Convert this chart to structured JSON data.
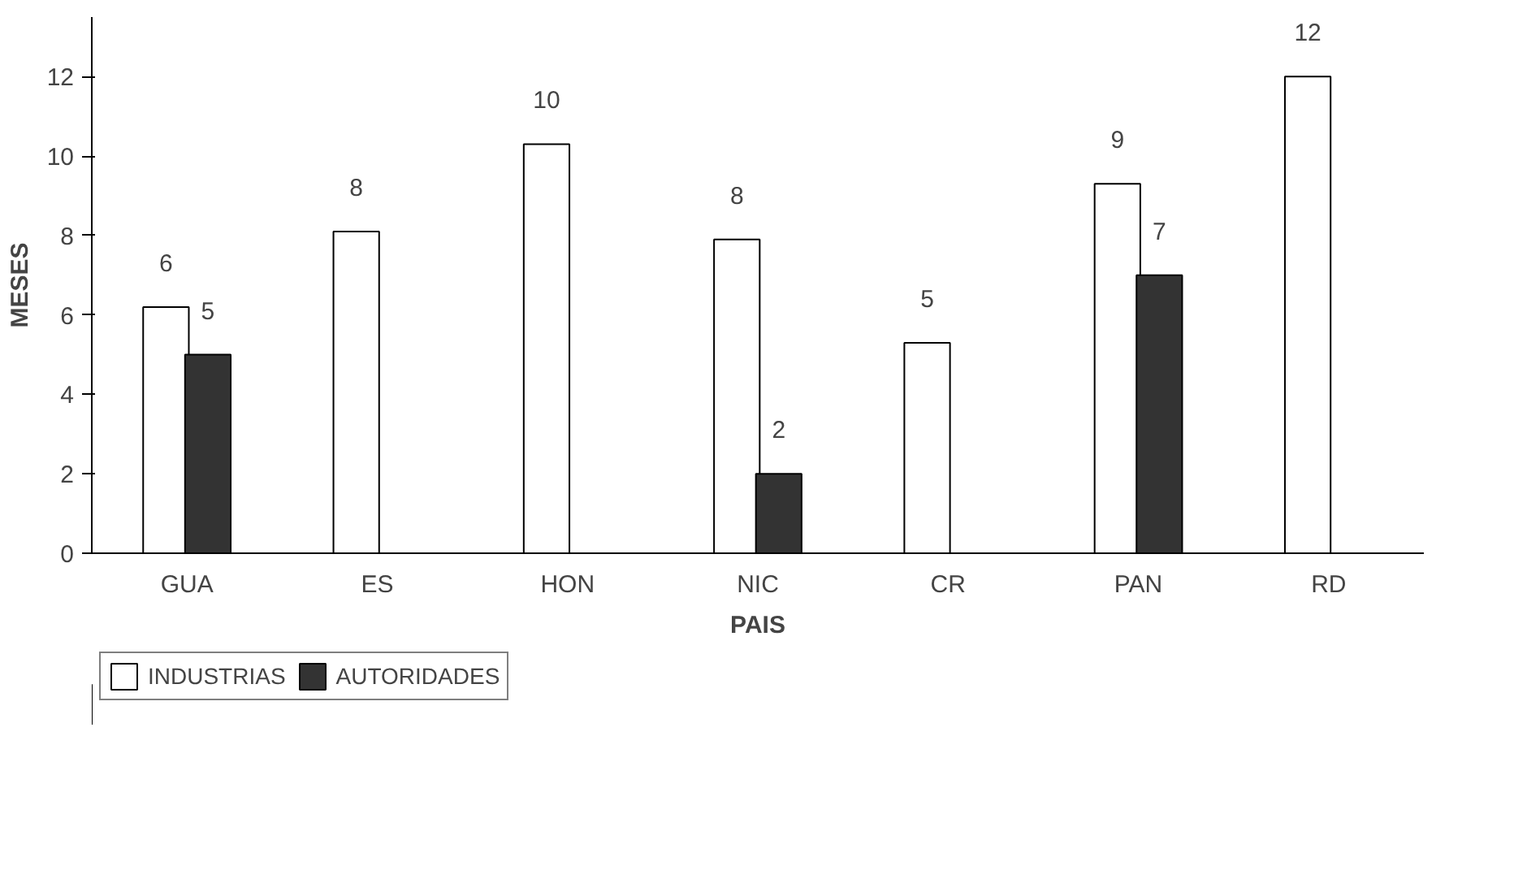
{
  "chart_data": {
    "type": "bar",
    "xlabel": "PAIS",
    "ylabel": "MESES",
    "categories": [
      "GUA",
      "ES",
      "HON",
      "NIC",
      "CR",
      "PAN",
      "RD"
    ],
    "series": [
      {
        "name": "INDUSTRIAS",
        "color": "#ffffff",
        "values": [
          6.2,
          8.1,
          10.3,
          7.9,
          5.3,
          9.3,
          12.0
        ],
        "value_labels": [
          "6",
          "8",
          "10",
          "8",
          "5",
          "9",
          "12"
        ]
      },
      {
        "name": "AUTORIDADES",
        "color": "#333333",
        "values": [
          5.0,
          null,
          null,
          2.0,
          null,
          7.0,
          null
        ],
        "value_labels": [
          "5",
          null,
          null,
          "2",
          null,
          "7",
          null
        ]
      }
    ],
    "ylim": [
      0,
      13.5
    ],
    "yticks": [
      0,
      2,
      4,
      6,
      8,
      10,
      12
    ],
    "grid": false,
    "legend": "bottom left"
  }
}
